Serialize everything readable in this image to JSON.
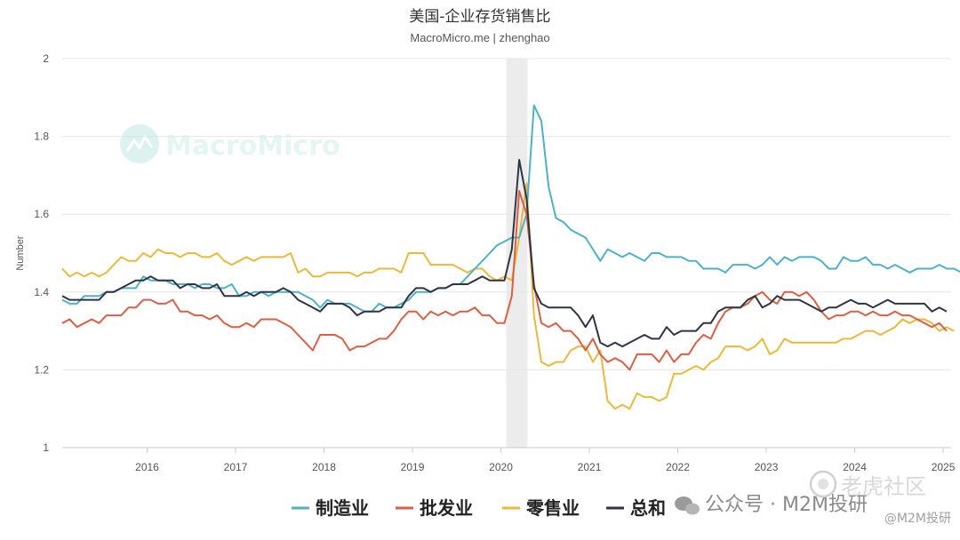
{
  "chart_data": {
    "type": "line",
    "title": "美国-企业存货销售比",
    "subtitle": "MacroMicro.me | zhenghao",
    "ylabel": "Number",
    "ylim": [
      1,
      2
    ],
    "yticks": [
      "1",
      "1.2",
      "1.4",
      "1.6",
      "1.8",
      "2"
    ],
    "xlim": [
      2015.08,
      2025.13
    ],
    "xticks": [
      "2016",
      "2017",
      "2018",
      "2019",
      "2020",
      "2021",
      "2022",
      "2023",
      "2024",
      "2025"
    ],
    "x_start": 2015.08,
    "x_step": 0.08333,
    "shaded_period": [
      2020.1,
      2020.34
    ],
    "grid": true,
    "legend_position": "bottom",
    "series": [
      {
        "name": "制造业",
        "color": "#4fb0c6",
        "values": [
          1.38,
          1.37,
          1.37,
          1.39,
          1.39,
          1.39,
          1.4,
          1.4,
          1.41,
          1.41,
          1.41,
          1.44,
          1.43,
          1.43,
          1.43,
          1.42,
          1.42,
          1.42,
          1.41,
          1.42,
          1.42,
          1.41,
          1.41,
          1.42,
          1.39,
          1.39,
          1.4,
          1.4,
          1.39,
          1.4,
          1.4,
          1.4,
          1.4,
          1.39,
          1.38,
          1.36,
          1.38,
          1.37,
          1.37,
          1.37,
          1.36,
          1.35,
          1.35,
          1.37,
          1.36,
          1.36,
          1.37,
          1.38,
          1.4,
          1.4,
          1.4,
          1.41,
          1.41,
          1.42,
          1.42,
          1.44,
          1.46,
          1.48,
          1.5,
          1.52,
          1.53,
          1.54,
          1.54,
          1.6,
          1.88,
          1.84,
          1.67,
          1.59,
          1.58,
          1.56,
          1.55,
          1.54,
          1.51,
          1.48,
          1.51,
          1.5,
          1.49,
          1.5,
          1.49,
          1.48,
          1.5,
          1.5,
          1.49,
          1.49,
          1.49,
          1.48,
          1.48,
          1.46,
          1.46,
          1.46,
          1.45,
          1.47,
          1.47,
          1.47,
          1.46,
          1.47,
          1.49,
          1.47,
          1.49,
          1.48,
          1.49,
          1.49,
          1.49,
          1.48,
          1.46,
          1.46,
          1.49,
          1.48,
          1.48,
          1.49,
          1.47,
          1.47,
          1.46,
          1.47,
          1.46,
          1.45,
          1.46,
          1.46,
          1.46,
          1.47,
          1.46,
          1.46,
          1.45
        ]
      },
      {
        "name": "批发业",
        "color": "#d95f45",
        "values": [
          1.32,
          1.33,
          1.31,
          1.32,
          1.33,
          1.32,
          1.34,
          1.34,
          1.34,
          1.36,
          1.36,
          1.38,
          1.38,
          1.37,
          1.37,
          1.38,
          1.35,
          1.35,
          1.34,
          1.34,
          1.33,
          1.34,
          1.32,
          1.31,
          1.31,
          1.32,
          1.31,
          1.33,
          1.33,
          1.33,
          1.32,
          1.31,
          1.29,
          1.27,
          1.25,
          1.29,
          1.29,
          1.29,
          1.28,
          1.25,
          1.26,
          1.26,
          1.27,
          1.28,
          1.28,
          1.3,
          1.33,
          1.35,
          1.35,
          1.33,
          1.35,
          1.34,
          1.35,
          1.34,
          1.35,
          1.35,
          1.36,
          1.34,
          1.34,
          1.32,
          1.32,
          1.39,
          1.66,
          1.6,
          1.42,
          1.32,
          1.31,
          1.32,
          1.3,
          1.3,
          1.28,
          1.25,
          1.28,
          1.24,
          1.22,
          1.23,
          1.22,
          1.2,
          1.24,
          1.24,
          1.24,
          1.22,
          1.25,
          1.22,
          1.24,
          1.24,
          1.27,
          1.29,
          1.28,
          1.32,
          1.35,
          1.36,
          1.36,
          1.37,
          1.39,
          1.4,
          1.38,
          1.37,
          1.4,
          1.4,
          1.39,
          1.4,
          1.38,
          1.35,
          1.33,
          1.34,
          1.34,
          1.35,
          1.35,
          1.34,
          1.35,
          1.34,
          1.34,
          1.35,
          1.34,
          1.34,
          1.33,
          1.32,
          1.31,
          1.32,
          1.3
        ]
      },
      {
        "name": "零售业",
        "color": "#e8b93d",
        "values": [
          1.46,
          1.44,
          1.45,
          1.44,
          1.45,
          1.44,
          1.45,
          1.47,
          1.49,
          1.48,
          1.48,
          1.5,
          1.49,
          1.51,
          1.5,
          1.5,
          1.49,
          1.5,
          1.5,
          1.49,
          1.49,
          1.5,
          1.48,
          1.47,
          1.48,
          1.49,
          1.48,
          1.49,
          1.49,
          1.49,
          1.49,
          1.5,
          1.45,
          1.46,
          1.44,
          1.44,
          1.45,
          1.45,
          1.45,
          1.45,
          1.44,
          1.45,
          1.45,
          1.46,
          1.46,
          1.46,
          1.45,
          1.5,
          1.5,
          1.5,
          1.47,
          1.47,
          1.47,
          1.47,
          1.46,
          1.45,
          1.46,
          1.46,
          1.44,
          1.43,
          1.44,
          1.43,
          1.54,
          1.68,
          1.34,
          1.22,
          1.21,
          1.22,
          1.22,
          1.25,
          1.26,
          1.26,
          1.22,
          1.25,
          1.12,
          1.1,
          1.11,
          1.1,
          1.14,
          1.13,
          1.13,
          1.12,
          1.13,
          1.19,
          1.19,
          1.2,
          1.21,
          1.2,
          1.22,
          1.23,
          1.26,
          1.26,
          1.26,
          1.25,
          1.26,
          1.28,
          1.24,
          1.25,
          1.28,
          1.27,
          1.27,
          1.27,
          1.27,
          1.27,
          1.27,
          1.27,
          1.28,
          1.28,
          1.29,
          1.3,
          1.3,
          1.29,
          1.3,
          1.31,
          1.33,
          1.32,
          1.33,
          1.33,
          1.32,
          1.3,
          1.31,
          1.3
        ]
      },
      {
        "name": "总和",
        "color": "#2e3442",
        "values": [
          1.39,
          1.38,
          1.38,
          1.38,
          1.38,
          1.38,
          1.4,
          1.4,
          1.41,
          1.42,
          1.43,
          1.43,
          1.44,
          1.43,
          1.43,
          1.43,
          1.41,
          1.42,
          1.42,
          1.41,
          1.41,
          1.42,
          1.39,
          1.39,
          1.39,
          1.4,
          1.39,
          1.4,
          1.4,
          1.4,
          1.41,
          1.4,
          1.38,
          1.37,
          1.36,
          1.35,
          1.37,
          1.37,
          1.37,
          1.36,
          1.34,
          1.35,
          1.35,
          1.35,
          1.36,
          1.36,
          1.36,
          1.39,
          1.41,
          1.41,
          1.4,
          1.41,
          1.41,
          1.42,
          1.42,
          1.42,
          1.43,
          1.44,
          1.43,
          1.43,
          1.43,
          1.51,
          1.74,
          1.64,
          1.41,
          1.37,
          1.36,
          1.36,
          1.36,
          1.36,
          1.34,
          1.31,
          1.34,
          1.27,
          1.26,
          1.27,
          1.26,
          1.27,
          1.28,
          1.29,
          1.28,
          1.28,
          1.31,
          1.29,
          1.3,
          1.3,
          1.3,
          1.32,
          1.32,
          1.35,
          1.36,
          1.36,
          1.36,
          1.38,
          1.39,
          1.36,
          1.37,
          1.39,
          1.38,
          1.38,
          1.38,
          1.37,
          1.36,
          1.35,
          1.36,
          1.36,
          1.37,
          1.38,
          1.37,
          1.37,
          1.36,
          1.37,
          1.38,
          1.37,
          1.37,
          1.37,
          1.37,
          1.37,
          1.35,
          1.36,
          1.35
        ]
      }
    ]
  },
  "watermark": {
    "brand": "MacroMicro",
    "wechat_account": "公众号 · M2M投研",
    "community": "老虎社区",
    "handle": "@M2M投研"
  }
}
